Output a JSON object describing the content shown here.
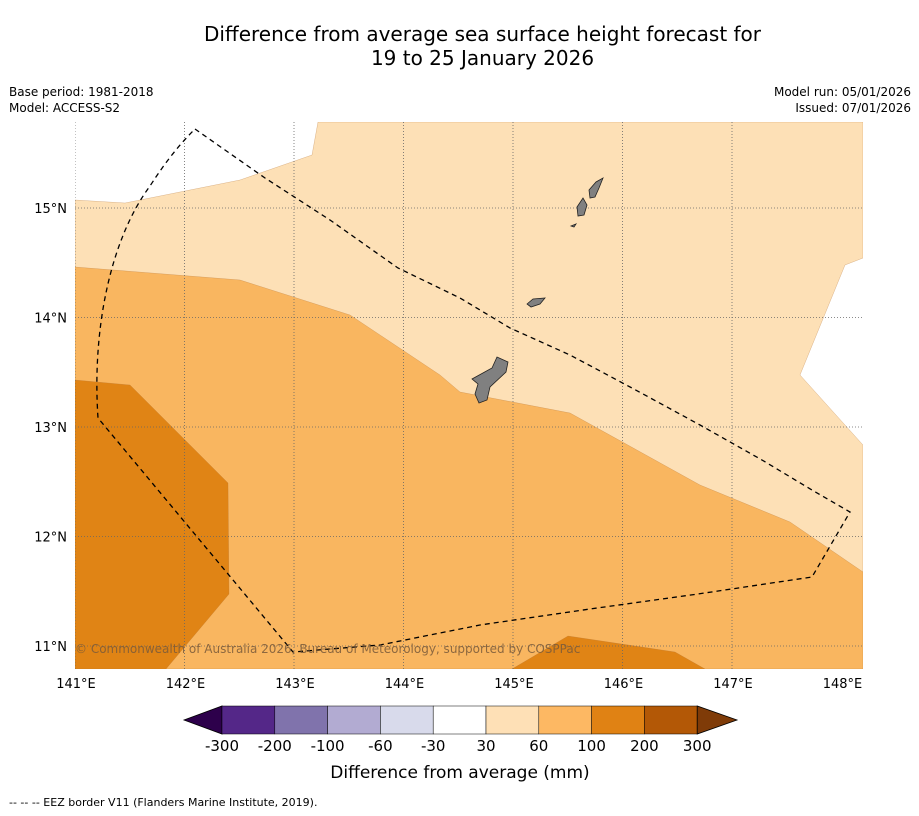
{
  "title": {
    "line1": "Difference from average sea surface height forecast for",
    "line2": "19 to 25 January 2026"
  },
  "meta": {
    "base_period": "Base period: 1981-2018",
    "model": "Model: ACCESS-S2",
    "model_run": "Model run: 05/01/2026",
    "issued": "Issued: 07/01/2026"
  },
  "map": {
    "lat_labels": [
      "15°N",
      "14°N",
      "13°N",
      "12°N",
      "11°N"
    ],
    "lon_labels": [
      "141°E",
      "142°E",
      "143°E",
      "144°E",
      "145°E",
      "146°E",
      "147°E",
      "148°E"
    ],
    "copyright": "© Commonwealth of Australia 2026, Bureau of Meteorology, supported by COSPPac",
    "colors": {
      "band_30_60": "#fde0b6",
      "band_60_100": "#f9b660",
      "band_100_200": "#e08415",
      "land": "#808080"
    }
  },
  "colorbar": {
    "title": "Difference from average (mm)",
    "ticks": [
      "-300",
      "-200",
      "-100",
      "-60",
      "-30",
      "30",
      "60",
      "100",
      "200",
      "300"
    ],
    "colors": [
      "#2d004b",
      "#542788",
      "#8073ac",
      "#b2abd2",
      "#d8daeb",
      "#ffffff",
      "#fee0b6",
      "#fdb863",
      "#e08214",
      "#b35806",
      "#7f3b08"
    ]
  },
  "footer": {
    "legend": "-- -- -- EEZ border V11 (Flanders Marine Institute, 2019)."
  }
}
